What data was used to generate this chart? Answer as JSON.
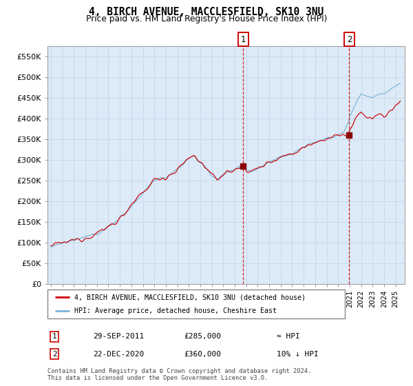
{
  "title": "4, BIRCH AVENUE, MACCLESFIELD, SK10 3NU",
  "subtitle": "Price paid vs. HM Land Registry's House Price Index (HPI)",
  "ylim": [
    0,
    575000
  ],
  "yticks": [
    0,
    50000,
    100000,
    150000,
    200000,
    250000,
    300000,
    350000,
    400000,
    450000,
    500000,
    550000
  ],
  "ytick_labels": [
    "£0",
    "£50K",
    "£100K",
    "£150K",
    "£200K",
    "£250K",
    "£300K",
    "£350K",
    "£400K",
    "£450K",
    "£500K",
    "£550K"
  ],
  "hpi_color": "#7ab4d8",
  "price_color": "#cc0000",
  "marker_color": "#8b0000",
  "grid_color": "#c0d4e8",
  "bg_color": "#ddeaf7",
  "plot_bg": "#ffffff",
  "legend_entry1": "4, BIRCH AVENUE, MACCLESFIELD, SK10 3NU (detached house)",
  "legend_entry2": "HPI: Average price, detached house, Cheshire East",
  "annotation1_date": "29-SEP-2011",
  "annotation1_price": "£285,000",
  "annotation1_hpi": "≈ HPI",
  "annotation2_date": "22-DEC-2020",
  "annotation2_price": "£360,000",
  "annotation2_hpi": "10% ↓ HPI",
  "footnote": "Contains HM Land Registry data © Crown copyright and database right 2024.\nThis data is licensed under the Open Government Licence v3.0.",
  "sale1_x": 2011.747,
  "sale1_y": 285000,
  "sale2_x": 2020.972,
  "sale2_y": 360000,
  "xmin": 1994.7,
  "xmax": 2025.8
}
